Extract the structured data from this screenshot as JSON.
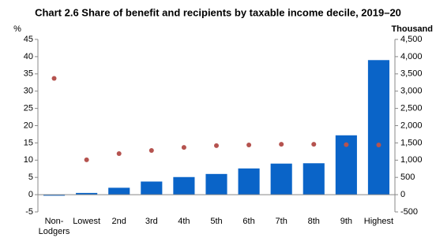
{
  "chart_data": {
    "type": "bar-dot",
    "title": "Chart 2.6 Share of benefit and recipients by taxable income decile, 2019–20",
    "y_label": "%",
    "y2_label": "Thousand",
    "categories": [
      "Non-Lodgers",
      "Lowest",
      "2nd",
      "3rd",
      "4th",
      "5th",
      "6th",
      "7th",
      "8th",
      "9th",
      "Highest"
    ],
    "series": [
      {
        "type": "bar",
        "color": "#0a64c8",
        "values": [
          -0.3,
          0.5,
          2.0,
          3.8,
          5.1,
          6.0,
          7.6,
          9.0,
          9.1,
          17.2,
          39.0
        ]
      },
      {
        "type": "scatter",
        "axis": "y2",
        "color": "#b5534f",
        "values": [
          3370,
          1010,
          1190,
          1280,
          1370,
          1420,
          1440,
          1460,
          1460,
          1450,
          1440
        ]
      }
    ],
    "ylim": [
      -5,
      45
    ],
    "yticks": [
      -5,
      0,
      5,
      10,
      15,
      20,
      25,
      30,
      35,
      40,
      45
    ],
    "y2lim": [
      -500,
      4500
    ],
    "y2ticks": [
      -500,
      0,
      500,
      {
        "value": 1000,
        "label": "1,000"
      },
      {
        "value": 1500,
        "label": "1,500"
      },
      {
        "value": 2000,
        "label": "2,000"
      },
      {
        "value": 2500,
        "label": "2,500"
      },
      {
        "value": 3000,
        "label": "3,000"
      },
      {
        "value": 3500,
        "label": "3,500"
      },
      {
        "value": 4000,
        "label": "4,000"
      },
      {
        "value": 4500,
        "label": "4,500"
      }
    ]
  }
}
